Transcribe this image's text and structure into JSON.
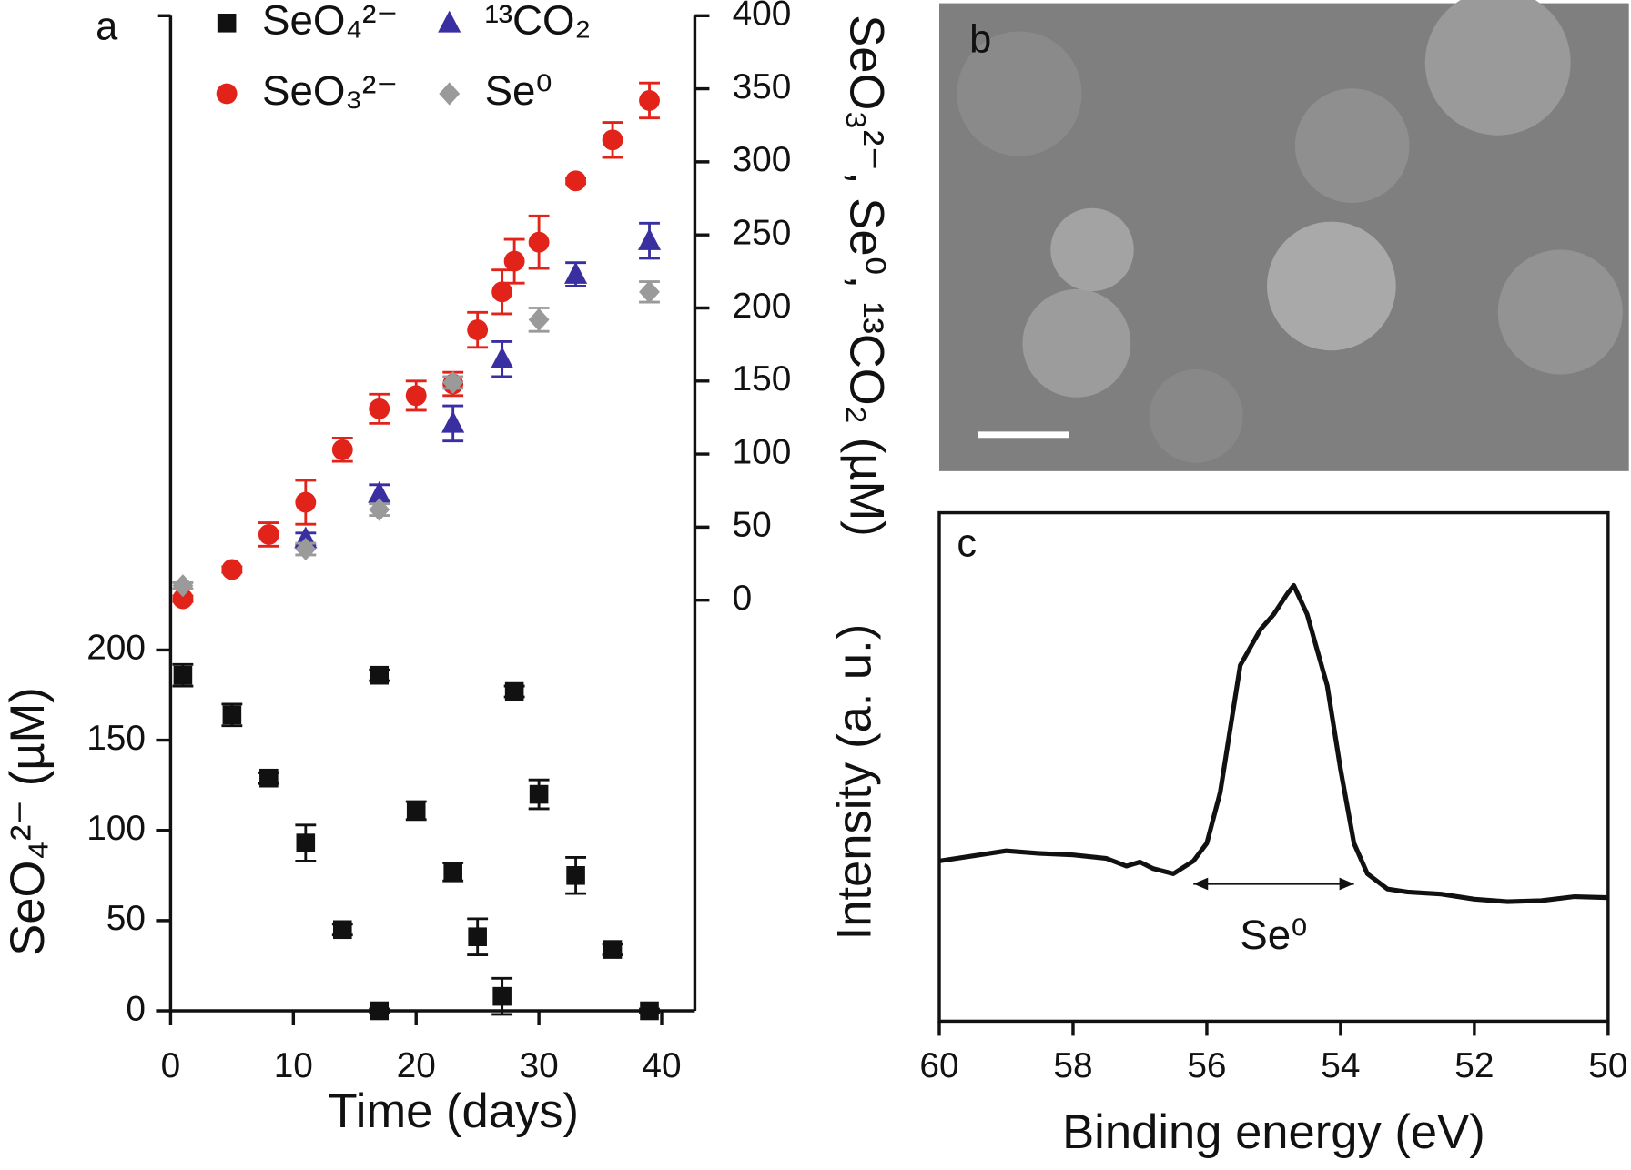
{
  "chart_data": [
    {
      "type": "scatter",
      "label": "a",
      "xlabel": "Time  (days)",
      "ylabel": "SeO₄²⁻ (µM)",
      "y2label": "SeO₃²⁻, Se⁰, ¹³CO₂ (µM)",
      "xlim": [
        0,
        42.7
      ],
      "xticks": [
        0,
        10,
        20,
        30,
        40
      ],
      "ylim": [
        0,
        551.6
      ],
      "yticks": [
        0,
        50,
        100,
        150,
        200
      ],
      "y2lim": [
        -281,
        400
      ],
      "y2ticks": [
        0,
        50,
        100,
        150,
        200,
        250,
        300,
        350,
        400
      ],
      "legend": "upper center",
      "series": [
        {
          "name": "SeO₄²⁻",
          "color": "#111111",
          "marker": "square",
          "x": [
            1,
            5,
            8,
            11,
            14,
            17,
            17,
            20,
            23,
            25,
            27,
            28,
            30,
            33,
            36,
            39
          ],
          "values": [
            186,
            164,
            129,
            93,
            45,
            0,
            186,
            111,
            77,
            41,
            8,
            177,
            120,
            75,
            34,
            0
          ],
          "errors": [
            6,
            6,
            3,
            10,
            3,
            1,
            3,
            5,
            5,
            10,
            10,
            3,
            8,
            10,
            3,
            1
          ]
        },
        {
          "name": "SeO₃²⁻",
          "color": "#e2231a",
          "marker": "circle",
          "axis": "y2",
          "x": [
            1,
            5,
            8,
            11,
            14,
            17,
            20,
            23,
            25,
            27,
            28,
            30,
            33,
            36,
            39
          ],
          "values": [
            1,
            21,
            45,
            67,
            103,
            131,
            140,
            148,
            185,
            211,
            232,
            245,
            287,
            315,
            342
          ],
          "errors": [
            2,
            2,
            8,
            15,
            8,
            10,
            10,
            8,
            12,
            15,
            15,
            18,
            2,
            12,
            12
          ]
        },
        {
          "name": "¹³CO₂",
          "color": "#3a2fa0",
          "marker": "triangle",
          "axis": "y2",
          "x": [
            11,
            17,
            23,
            27,
            33,
            39
          ],
          "values": [
            42,
            73,
            121,
            165,
            223,
            246
          ],
          "errors": [
            4,
            6,
            12,
            12,
            8,
            12
          ]
        },
        {
          "name": "Se⁰",
          "color": "#9a9a9a",
          "marker": "diamond",
          "axis": "y2",
          "x": [
            1,
            11,
            17,
            23,
            30,
            39
          ],
          "values": [
            10,
            35,
            62,
            149,
            192,
            211
          ],
          "errors": [
            2,
            4,
            4,
            4,
            8,
            7
          ]
        }
      ]
    },
    {
      "type": "line",
      "label": "c",
      "xlabel": "Binding energy (eV)",
      "ylabel": "Intensity (a. u.)",
      "xlim": [
        60,
        50
      ],
      "xticks": [
        60,
        58,
        56,
        54,
        52,
        50
      ],
      "ylim": [
        0,
        100
      ],
      "series": [
        {
          "color": "#111111",
          "x": [
            60,
            59.5,
            59,
            58.5,
            58,
            57.5,
            57.2,
            57,
            56.8,
            56.5,
            56.2,
            56,
            55.8,
            55.5,
            55.2,
            55,
            54.8,
            54.7,
            54.5,
            54.2,
            54,
            53.8,
            53.6,
            53.3,
            53,
            52.5,
            52,
            51.5,
            51,
            50.5,
            50
          ],
          "values": [
            31.5,
            32.5,
            33.5,
            33,
            32.7,
            32,
            30.5,
            31.3,
            30,
            29,
            31.5,
            35,
            45,
            70,
            77,
            80,
            84,
            85.7,
            80,
            66,
            49.5,
            35,
            29,
            26,
            25.4,
            25,
            24,
            23.5,
            23.7,
            24.5,
            24.3
          ]
        }
      ],
      "annotation": {
        "text": "Se⁰",
        "x": [
          56.2,
          53.8
        ],
        "y": 27
      }
    }
  ],
  "image_panel": {
    "label": "b"
  }
}
